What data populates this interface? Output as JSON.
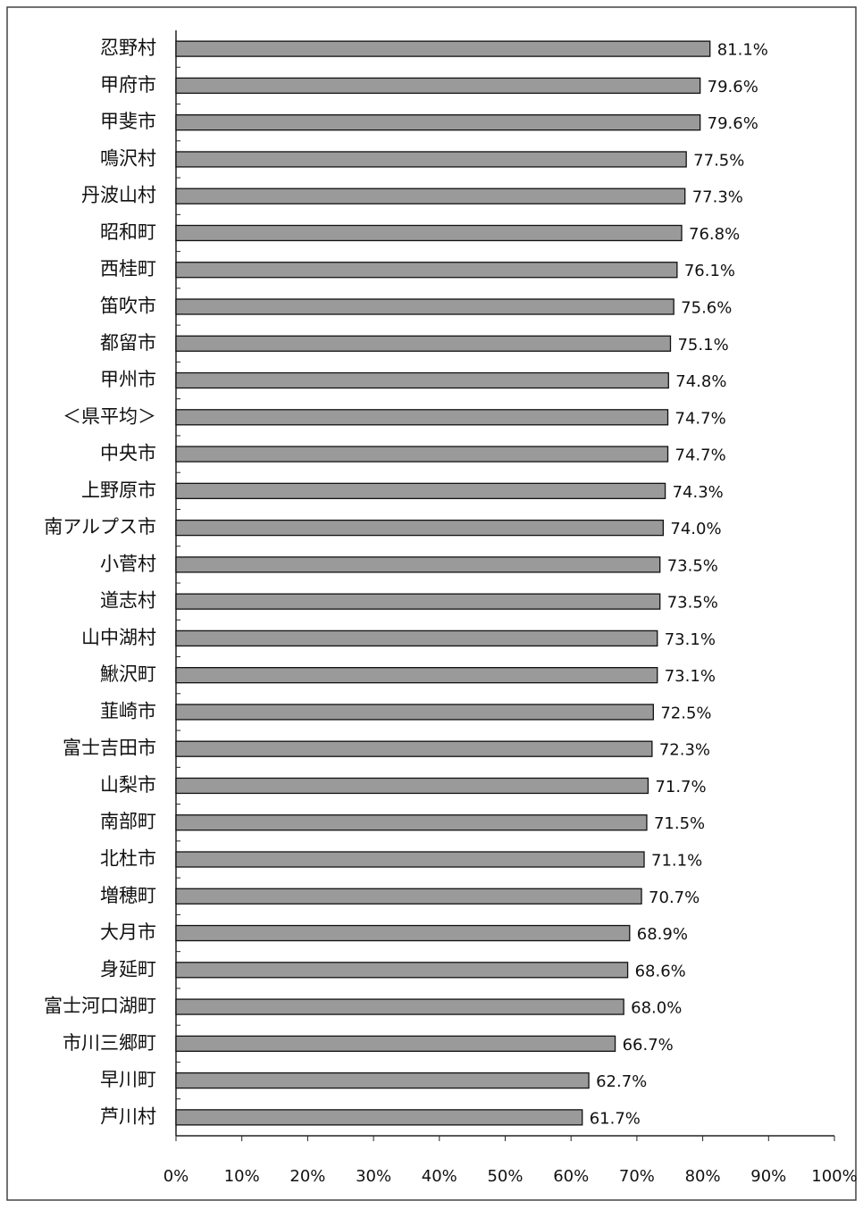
{
  "chart_data": {
    "type": "bar",
    "orientation": "horizontal",
    "categories": [
      "忍野村",
      "甲府市",
      "甲斐市",
      "鳴沢村",
      "丹波山村",
      "昭和町",
      "西桂町",
      "笛吹市",
      "都留市",
      "甲州市",
      "＜県平均＞",
      "中央市",
      "上野原市",
      "南アルプス市",
      "小菅村",
      "道志村",
      "山中湖村",
      "鰍沢町",
      "韮崎市",
      "富士吉田市",
      "山梨市",
      "南部町",
      "北杜市",
      "増穂町",
      "大月市",
      "身延町",
      "富士河口湖町",
      "市川三郷町",
      "早川町",
      "芦川村"
    ],
    "values": [
      81.1,
      79.6,
      79.6,
      77.5,
      77.3,
      76.8,
      76.1,
      75.6,
      75.1,
      74.8,
      74.7,
      74.7,
      74.3,
      74.0,
      73.5,
      73.5,
      73.1,
      73.1,
      72.5,
      72.3,
      71.7,
      71.5,
      71.1,
      70.7,
      68.9,
      68.6,
      68.0,
      66.7,
      62.7,
      61.7
    ],
    "value_labels": [
      "81.1%",
      "79.6%",
      "79.6%",
      "77.5%",
      "77.3%",
      "76.8%",
      "76.1%",
      "75.6%",
      "75.1%",
      "74.8%",
      "74.7%",
      "74.7%",
      "74.3%",
      "74.0%",
      "73.5%",
      "73.5%",
      "73.1%",
      "73.1%",
      "72.5%",
      "72.3%",
      "71.7%",
      "71.5%",
      "71.1%",
      "70.7%",
      "68.9%",
      "68.6%",
      "68.0%",
      "66.7%",
      "62.7%",
      "61.7%"
    ],
    "color": "#9a9a9a",
    "xlim": [
      0,
      100
    ],
    "xticks": [
      {
        "value": 0,
        "label": "0%"
      },
      {
        "value": 10,
        "label": "10%"
      },
      {
        "value": 20,
        "label": "20%"
      },
      {
        "value": 30,
        "label": "30%"
      },
      {
        "value": 40,
        "label": "40%"
      },
      {
        "value": 50,
        "label": "50%"
      },
      {
        "value": 60,
        "label": "60%"
      },
      {
        "value": 70,
        "label": "70%"
      },
      {
        "value": 80,
        "label": "80%"
      },
      {
        "value": 90,
        "label": "90%"
      },
      {
        "value": 100,
        "label": "100%"
      }
    ],
    "grid": false
  }
}
